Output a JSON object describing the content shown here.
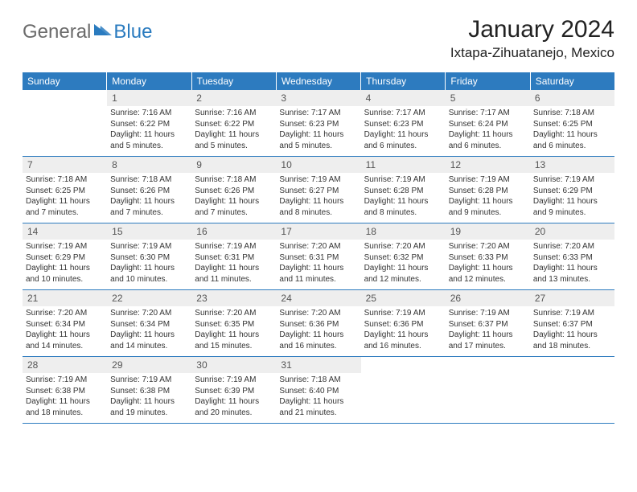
{
  "logo": {
    "text1": "General",
    "text2": "Blue",
    "color1": "#6b6b6b",
    "color2": "#2a7bbf",
    "triangle_color": "#2a7bbf"
  },
  "title": "January 2024",
  "location": "Ixtapa-Zihuatanejo, Mexico",
  "weekdays": [
    "Sunday",
    "Monday",
    "Tuesday",
    "Wednesday",
    "Thursday",
    "Friday",
    "Saturday"
  ],
  "colors": {
    "header_bg": "#2d7bbf",
    "header_text": "#ffffff",
    "daynum_bg": "#eeeeee",
    "daynum_text": "#555555",
    "body_text": "#333333",
    "rule": "#2d7bbf",
    "page_bg": "#ffffff"
  },
  "fonts": {
    "title_size": 30,
    "location_size": 17,
    "weekday_size": 12,
    "daynum_size": 12,
    "body_size": 10
  },
  "start_offset": 1,
  "days": [
    {
      "n": 1,
      "sunrise": "7:16 AM",
      "sunset": "6:22 PM",
      "daylight": "11 hours and 5 minutes."
    },
    {
      "n": 2,
      "sunrise": "7:16 AM",
      "sunset": "6:22 PM",
      "daylight": "11 hours and 5 minutes."
    },
    {
      "n": 3,
      "sunrise": "7:17 AM",
      "sunset": "6:23 PM",
      "daylight": "11 hours and 5 minutes."
    },
    {
      "n": 4,
      "sunrise": "7:17 AM",
      "sunset": "6:23 PM",
      "daylight": "11 hours and 6 minutes."
    },
    {
      "n": 5,
      "sunrise": "7:17 AM",
      "sunset": "6:24 PM",
      "daylight": "11 hours and 6 minutes."
    },
    {
      "n": 6,
      "sunrise": "7:18 AM",
      "sunset": "6:25 PM",
      "daylight": "11 hours and 6 minutes."
    },
    {
      "n": 7,
      "sunrise": "7:18 AM",
      "sunset": "6:25 PM",
      "daylight": "11 hours and 7 minutes."
    },
    {
      "n": 8,
      "sunrise": "7:18 AM",
      "sunset": "6:26 PM",
      "daylight": "11 hours and 7 minutes."
    },
    {
      "n": 9,
      "sunrise": "7:18 AM",
      "sunset": "6:26 PM",
      "daylight": "11 hours and 7 minutes."
    },
    {
      "n": 10,
      "sunrise": "7:19 AM",
      "sunset": "6:27 PM",
      "daylight": "11 hours and 8 minutes."
    },
    {
      "n": 11,
      "sunrise": "7:19 AM",
      "sunset": "6:28 PM",
      "daylight": "11 hours and 8 minutes."
    },
    {
      "n": 12,
      "sunrise": "7:19 AM",
      "sunset": "6:28 PM",
      "daylight": "11 hours and 9 minutes."
    },
    {
      "n": 13,
      "sunrise": "7:19 AM",
      "sunset": "6:29 PM",
      "daylight": "11 hours and 9 minutes."
    },
    {
      "n": 14,
      "sunrise": "7:19 AM",
      "sunset": "6:29 PM",
      "daylight": "11 hours and 10 minutes."
    },
    {
      "n": 15,
      "sunrise": "7:19 AM",
      "sunset": "6:30 PM",
      "daylight": "11 hours and 10 minutes."
    },
    {
      "n": 16,
      "sunrise": "7:19 AM",
      "sunset": "6:31 PM",
      "daylight": "11 hours and 11 minutes."
    },
    {
      "n": 17,
      "sunrise": "7:20 AM",
      "sunset": "6:31 PM",
      "daylight": "11 hours and 11 minutes."
    },
    {
      "n": 18,
      "sunrise": "7:20 AM",
      "sunset": "6:32 PM",
      "daylight": "11 hours and 12 minutes."
    },
    {
      "n": 19,
      "sunrise": "7:20 AM",
      "sunset": "6:33 PM",
      "daylight": "11 hours and 12 minutes."
    },
    {
      "n": 20,
      "sunrise": "7:20 AM",
      "sunset": "6:33 PM",
      "daylight": "11 hours and 13 minutes."
    },
    {
      "n": 21,
      "sunrise": "7:20 AM",
      "sunset": "6:34 PM",
      "daylight": "11 hours and 14 minutes."
    },
    {
      "n": 22,
      "sunrise": "7:20 AM",
      "sunset": "6:34 PM",
      "daylight": "11 hours and 14 minutes."
    },
    {
      "n": 23,
      "sunrise": "7:20 AM",
      "sunset": "6:35 PM",
      "daylight": "11 hours and 15 minutes."
    },
    {
      "n": 24,
      "sunrise": "7:20 AM",
      "sunset": "6:36 PM",
      "daylight": "11 hours and 16 minutes."
    },
    {
      "n": 25,
      "sunrise": "7:19 AM",
      "sunset": "6:36 PM",
      "daylight": "11 hours and 16 minutes."
    },
    {
      "n": 26,
      "sunrise": "7:19 AM",
      "sunset": "6:37 PM",
      "daylight": "11 hours and 17 minutes."
    },
    {
      "n": 27,
      "sunrise": "7:19 AM",
      "sunset": "6:37 PM",
      "daylight": "11 hours and 18 minutes."
    },
    {
      "n": 28,
      "sunrise": "7:19 AM",
      "sunset": "6:38 PM",
      "daylight": "11 hours and 18 minutes."
    },
    {
      "n": 29,
      "sunrise": "7:19 AM",
      "sunset": "6:38 PM",
      "daylight": "11 hours and 19 minutes."
    },
    {
      "n": 30,
      "sunrise": "7:19 AM",
      "sunset": "6:39 PM",
      "daylight": "11 hours and 20 minutes."
    },
    {
      "n": 31,
      "sunrise": "7:18 AM",
      "sunset": "6:40 PM",
      "daylight": "11 hours and 21 minutes."
    }
  ],
  "labels": {
    "sunrise": "Sunrise:",
    "sunset": "Sunset:",
    "daylight": "Daylight:"
  }
}
